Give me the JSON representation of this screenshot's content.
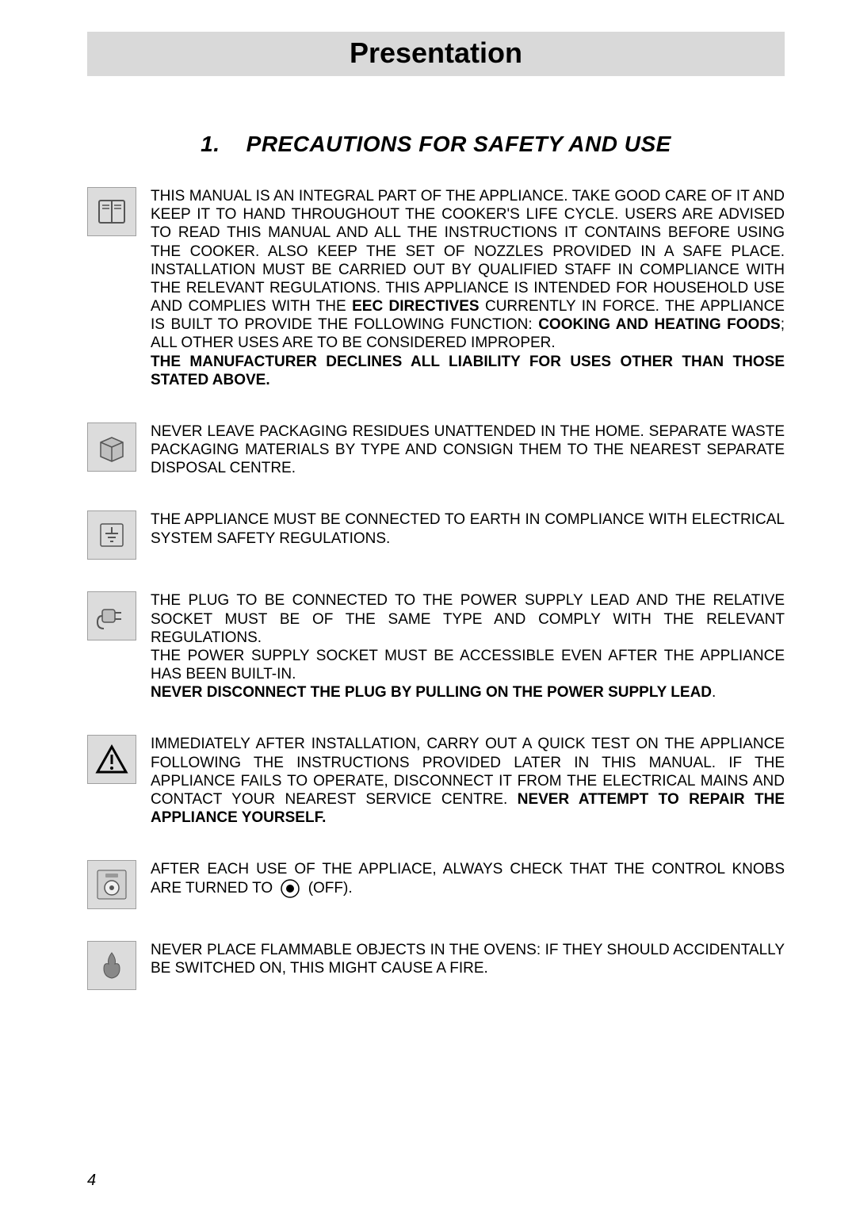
{
  "page": {
    "title": "Presentation",
    "section_number": "1.",
    "section_title": "PRECAUTIONS FOR SAFETY AND USE",
    "page_number": "4",
    "colors": {
      "title_bg": "#d9d9d9",
      "icon_bg": "#dcdcdc",
      "icon_border": "#a0a0a0",
      "text": "#000000",
      "page_bg": "#ffffff",
      "icon_stroke": "#555555"
    },
    "typography": {
      "title_fontsize": 36,
      "section_fontsize": 28,
      "body_fontsize": 19,
      "page_num_fontsize": 20
    }
  },
  "entries": [
    {
      "icon": "manual",
      "segments": [
        {
          "t": "THIS MANUAL IS AN INTEGRAL PART OF THE APPLIANCE. TAKE GOOD CARE OF IT AND KEEP IT TO HAND THROUGHOUT THE COOKER'S LIFE CYCLE. USERS ARE ADVISED TO READ THIS MANUAL AND ALL THE INSTRUCTIONS IT CONTAINS BEFORE USING THE COOKER. ALSO KEEP THE SET OF NOZZLES PROVIDED IN A SAFE PLACE. INSTALLATION MUST BE CARRIED OUT BY QUALIFIED STAFF IN COMPLIANCE WITH THE RELEVANT REGULATIONS. THIS APPLIANCE IS INTENDED FOR HOUSEHOLD USE AND COMPLIES WITH THE ",
          "b": false
        },
        {
          "t": "EEC DIRECTIVES",
          "b": true
        },
        {
          "t": " CURRENTLY IN FORCE. THE APPLIANCE IS BUILT TO PROVIDE THE FOLLOWING FUNCTION: ",
          "b": false
        },
        {
          "t": "COOKING AND HEATING FOODS",
          "b": true
        },
        {
          "t": "; ALL OTHER USES ARE TO BE CONSIDERED IMPROPER.",
          "b": false,
          "br": true
        },
        {
          "t": "THE MANUFACTURER DECLINES ALL LIABILITY FOR USES OTHER THAN THOSE STATED ABOVE.",
          "b": true
        }
      ]
    },
    {
      "icon": "packaging",
      "segments": [
        {
          "t": "NEVER LEAVE PACKAGING RESIDUES UNATTENDED IN THE HOME. SEPARATE WASTE PACKAGING MATERIALS BY TYPE AND CONSIGN THEM TO THE NEAREST SEPARATE DISPOSAL CENTRE.",
          "b": false
        }
      ]
    },
    {
      "icon": "earth",
      "segments": [
        {
          "t": "THE APPLIANCE MUST BE CONNECTED TO EARTH IN COMPLIANCE WITH ELECTRICAL SYSTEM SAFETY REGULATIONS.",
          "b": false
        }
      ]
    },
    {
      "icon": "plug",
      "segments": [
        {
          "t": "THE PLUG TO BE CONNECTED TO THE POWER SUPPLY LEAD AND THE RELATIVE SOCKET MUST BE OF THE SAME TYPE AND COMPLY WITH THE RELEVANT REGULATIONS.",
          "b": false,
          "br": true
        },
        {
          "t": "THE POWER SUPPLY SOCKET MUST BE ACCESSIBLE EVEN AFTER THE APPLIANCE HAS BEEN BUILT-IN.",
          "b": false,
          "br": true
        },
        {
          "t": "NEVER DISCONNECT THE PLUG BY PULLING ON THE POWER SUPPLY LEAD",
          "b": true
        },
        {
          "t": ".",
          "b": false
        }
      ]
    },
    {
      "icon": "warning",
      "segments": [
        {
          "t": "IMMEDIATELY AFTER INSTALLATION, CARRY OUT A QUICK TEST ON THE APPLIANCE FOLLOWING THE INSTRUCTIONS PROVIDED LATER IN THIS MANUAL. IF THE APPLIANCE FAILS TO OPERATE, DISCONNECT IT FROM THE ELECTRICAL MAINS AND CONTACT YOUR NEAREST SERVICE CENTRE. ",
          "b": false
        },
        {
          "t": "NEVER ATTEMPT TO REPAIR THE APPLIANCE YOURSELF.",
          "b": true
        }
      ]
    },
    {
      "icon": "knob",
      "segments": [
        {
          "t": "AFTER EACH USE OF THE APPLIACE, ALWAYS CHECK THAT THE CONTROL KNOBS ARE TURNED TO ",
          "b": false
        },
        {
          "t": "[OFF-SYMBOL]",
          "b": false,
          "symbol": true
        },
        {
          "t": " (OFF).",
          "b": false
        }
      ]
    },
    {
      "icon": "flame",
      "segments": [
        {
          "t": "NEVER PLACE FLAMMABLE OBJECTS IN THE OVENS: IF THEY SHOULD ACCIDENTALLY BE SWITCHED ON, THIS MIGHT CAUSE A FIRE.",
          "b": false
        }
      ]
    }
  ]
}
